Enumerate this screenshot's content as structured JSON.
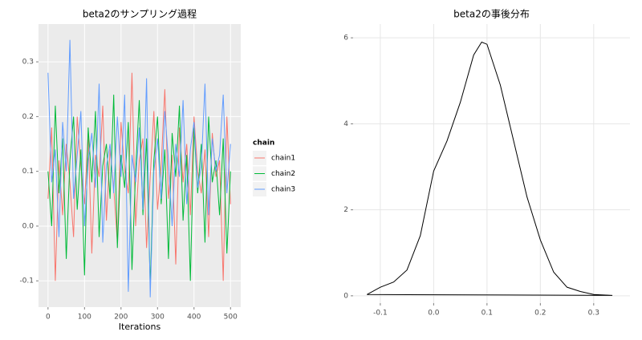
{
  "chart_data": [
    {
      "type": "line",
      "title": "beta2のサンプリング過程",
      "x_label": "Iterations",
      "legend_title": "chain",
      "x": [
        0,
        10,
        20,
        30,
        40,
        50,
        60,
        70,
        80,
        90,
        100,
        110,
        120,
        130,
        140,
        150,
        160,
        170,
        180,
        190,
        200,
        210,
        220,
        230,
        240,
        250,
        260,
        270,
        280,
        290,
        300,
        310,
        320,
        330,
        340,
        350,
        360,
        370,
        380,
        390,
        400,
        410,
        420,
        430,
        440,
        450,
        460,
        470,
        480,
        490,
        500
      ],
      "series": [
        {
          "name": "chain1",
          "color": "#F8766D",
          "values": [
            0.05,
            0.18,
            -0.1,
            0.12,
            0.02,
            0.15,
            0.08,
            -0.02,
            0.2,
            0.11,
            0.04,
            0.17,
            -0.05,
            0.13,
            0.09,
            0.22,
            0.01,
            0.14,
            0.07,
            -0.03,
            0.19,
            0.1,
            0.06,
            0.28,
            0.0,
            0.12,
            0.16,
            -0.04,
            0.09,
            0.21,
            0.03,
            0.11,
            0.25,
            0.05,
            0.13,
            -0.07,
            0.18,
            0.08,
            0.15,
            0.02,
            0.2,
            0.1,
            0.06,
            0.14,
            -0.02,
            0.17,
            0.09,
            0.12,
            -0.1,
            0.2,
            0.04
          ]
        },
        {
          "name": "chain2",
          "color": "#00BA38",
          "values": [
            0.1,
            0.0,
            0.22,
            0.06,
            0.16,
            -0.06,
            0.12,
            0.2,
            0.03,
            0.14,
            -0.09,
            0.18,
            0.08,
            0.21,
            -0.02,
            0.11,
            0.15,
            0.05,
            0.24,
            -0.04,
            0.13,
            0.07,
            0.19,
            -0.08,
            0.1,
            0.23,
            0.02,
            0.16,
            -0.11,
            0.12,
            0.2,
            0.04,
            0.14,
            -0.06,
            0.17,
            0.09,
            0.22,
            0.01,
            0.13,
            -0.1,
            0.18,
            0.06,
            0.15,
            -0.03,
            0.2,
            0.08,
            0.12,
            0.02,
            0.16,
            -0.05,
            0.1
          ]
        },
        {
          "name": "chain3",
          "color": "#619CFF",
          "values": [
            0.28,
            0.08,
            0.14,
            -0.02,
            0.19,
            0.1,
            0.34,
            0.05,
            0.13,
            0.21,
            0.0,
            0.12,
            0.17,
            0.07,
            0.26,
            -0.03,
            0.11,
            0.15,
            0.06,
            0.2,
            0.09,
            0.24,
            -0.12,
            0.13,
            0.08,
            0.18,
            0.03,
            0.27,
            -0.13,
            0.1,
            0.16,
            0.05,
            0.21,
            0.12,
            0.0,
            0.15,
            0.09,
            0.23,
            0.04,
            0.14,
            0.19,
            0.07,
            0.11,
            0.26,
            0.02,
            0.16,
            0.1,
            0.13,
            0.24,
            0.06,
            0.15
          ]
        }
      ],
      "xlim": [
        -26,
        528
      ],
      "ylim": [
        -0.148,
        0.369
      ],
      "xticks": [
        0,
        100,
        200,
        300,
        400,
        500
      ],
      "yticks": [
        -0.1,
        {
          "value": 0,
          "label": "0.0"
        },
        0.1,
        0.2,
        0.3
      ],
      "grid": true,
      "background": "#ebebeb",
      "grid_color": "#ffffff"
    },
    {
      "type": "density",
      "title": "beta2の事後分布",
      "color": "#000000",
      "x": [
        -0.125,
        -0.1,
        -0.075,
        -0.05,
        -0.025,
        0,
        0.025,
        0.05,
        0.075,
        0.09,
        0.1,
        0.125,
        0.15,
        0.175,
        0.2,
        0.225,
        0.25,
        0.275,
        0.3,
        0.335
      ],
      "values": [
        0.03,
        0.2,
        0.32,
        0.6,
        1.4,
        2.9,
        3.6,
        4.5,
        5.6,
        5.9,
        5.85,
        4.9,
        3.6,
        2.3,
        1.3,
        0.55,
        0.2,
        0.1,
        0.03,
        0.01
      ],
      "xlim": [
        -0.151,
        0.368
      ],
      "ylim": [
        -0.17,
        6.32
      ],
      "xticks": [
        -0.1,
        {
          "value": 0,
          "label": "0.0"
        },
        0.1,
        0.2,
        0.3
      ],
      "yticks": [
        0,
        2,
        4,
        6
      ],
      "grid": true,
      "background": "#ffffff",
      "grid_color": "#e6e6e6"
    }
  ]
}
